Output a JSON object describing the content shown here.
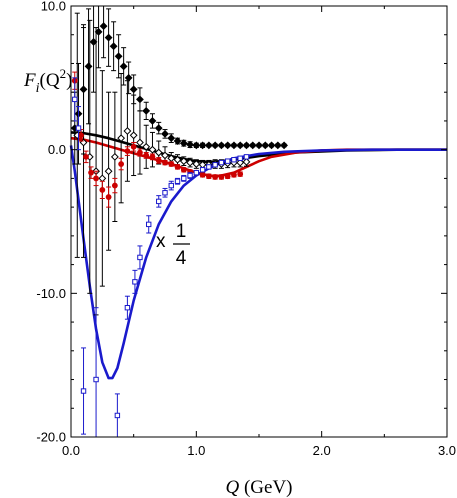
{
  "chart_data": {
    "type": "scatter",
    "title": "",
    "xlabel": {
      "var": "Q",
      "unit": " (GeV)"
    },
    "ylabel": {
      "base": "F",
      "sub": "i",
      "open": "(Q",
      "sup": "2",
      "close": ")"
    },
    "xlim": [
      0,
      3.0
    ],
    "ylim": [
      -20,
      10
    ],
    "x_ticks": [
      0.0,
      1.0,
      2.0,
      3.0
    ],
    "x_tick_labels": [
      "0.0",
      "1.0",
      "2.0",
      "3.0"
    ],
    "y_ticks": [
      -20,
      -10,
      0,
      10
    ],
    "y_tick_labels": [
      "-20.0",
      "-10.0",
      "0.0",
      "10.0"
    ],
    "grid": false,
    "annotation": {
      "prefix": "x",
      "numerator": "1",
      "denominator": "4"
    },
    "curves": [
      {
        "color": "#000000",
        "x": [
          0.0,
          0.1,
          0.2,
          0.3,
          0.4,
          0.5,
          0.6,
          0.7,
          0.8,
          0.9,
          1.0,
          1.1,
          1.2,
          1.3,
          1.5,
          1.8,
          2.2,
          2.6,
          3.0
        ],
        "y": [
          1.2,
          1.15,
          1.0,
          0.8,
          0.55,
          0.3,
          0.05,
          -0.2,
          -0.45,
          -0.65,
          -0.8,
          -0.85,
          -0.8,
          -0.7,
          -0.45,
          -0.2,
          -0.05,
          0.0,
          0.0
        ]
      },
      {
        "color": "#cc0000",
        "x": [
          0.0,
          0.1,
          0.2,
          0.3,
          0.4,
          0.5,
          0.6,
          0.7,
          0.8,
          0.9,
          1.0,
          1.1,
          1.15,
          1.2,
          1.3,
          1.4,
          1.5,
          1.6,
          1.8,
          2.0,
          2.2,
          2.6,
          3.0
        ],
        "y": [
          0.8,
          0.7,
          0.5,
          0.25,
          0.0,
          -0.25,
          -0.5,
          -0.75,
          -1.0,
          -1.3,
          -1.6,
          -1.8,
          -1.85,
          -1.8,
          -1.6,
          -1.2,
          -0.8,
          -0.5,
          -0.2,
          -0.05,
          0.0,
          0.0,
          0.0
        ]
      },
      {
        "color": "#1a1acc",
        "x": [
          0.0,
          0.03,
          0.06,
          0.1,
          0.15,
          0.2,
          0.25,
          0.3,
          0.33,
          0.37,
          0.42,
          0.5,
          0.6,
          0.7,
          0.8,
          0.9,
          1.0,
          1.1,
          1.2,
          1.3,
          1.5,
          1.7,
          2.0,
          2.4,
          3.0
        ],
        "y": [
          0.3,
          -1.5,
          -3.5,
          -6.2,
          -9.5,
          -12.5,
          -14.8,
          -15.9,
          -15.9,
          -15.2,
          -13.5,
          -10.5,
          -7.5,
          -5.2,
          -3.6,
          -2.5,
          -1.8,
          -1.3,
          -0.9,
          -0.6,
          -0.3,
          -0.15,
          -0.05,
          0.0,
          0.0
        ]
      }
    ],
    "series": [
      {
        "marker": "filled-diamond",
        "color": "#000000",
        "x": [
          0.03,
          0.06,
          0.1,
          0.14,
          0.18,
          0.22,
          0.26,
          0.3,
          0.34,
          0.38,
          0.42,
          0.46,
          0.5,
          0.55,
          0.6,
          0.65,
          0.7,
          0.75,
          0.8,
          0.85,
          0.9,
          0.95,
          1.0,
          1.05,
          1.1,
          1.15,
          1.2,
          1.25,
          1.3,
          1.35,
          1.4,
          1.45,
          1.5,
          1.55,
          1.6,
          1.65,
          1.7
        ],
        "y": [
          1.5,
          2.5,
          4.2,
          5.8,
          7.5,
          8.2,
          8.6,
          7.8,
          7.2,
          6.5,
          5.8,
          5.0,
          4.2,
          3.5,
          2.7,
          2.0,
          1.5,
          1.1,
          0.8,
          0.6,
          0.45,
          0.35,
          0.3,
          0.3,
          0.3,
          0.3,
          0.3,
          0.3,
          0.3,
          0.3,
          0.3,
          0.3,
          0.3,
          0.3,
          0.3,
          0.3,
          0.3
        ],
        "err": [
          2.5,
          3.5,
          4.5,
          4.0,
          3.5,
          2.5,
          2.2,
          2.0,
          1.7,
          1.5,
          1.3,
          1.1,
          1.0,
          0.8,
          0.6,
          0.5,
          0.4,
          0.3,
          0.3,
          0.2,
          0.2,
          0.2,
          0.15,
          0.15,
          0.1,
          0.1,
          0.1,
          0.1,
          0.1,
          0.1,
          0.1,
          0.1,
          0.1,
          0.1,
          0.1,
          0.1,
          0.1
        ]
      },
      {
        "marker": "open-diamond",
        "color": "#000000",
        "x": [
          0.05,
          0.1,
          0.15,
          0.2,
          0.25,
          0.3,
          0.35,
          0.4,
          0.45,
          0.5,
          0.55,
          0.6,
          0.65,
          0.7,
          0.75,
          0.8,
          0.85,
          0.9,
          0.95,
          1.0,
          1.05,
          1.1,
          1.15,
          1.2,
          1.25,
          1.3,
          1.35,
          1.4
        ],
        "y": [
          1.0,
          0.5,
          -0.5,
          -1.5,
          -2.0,
          -1.5,
          -0.5,
          0.8,
          1.3,
          1.0,
          0.5,
          0.2,
          0.0,
          -0.2,
          -0.4,
          -0.6,
          -0.7,
          -0.8,
          -0.9,
          -1.0,
          -1.05,
          -1.05,
          -1.0,
          -1.0,
          -0.95,
          -0.9,
          -0.9,
          -0.85
        ],
        "err": [
          8.5,
          8.0,
          9.5,
          10.0,
          7.5,
          5.5,
          4.5,
          4.5,
          3.5,
          2.8,
          2.2,
          1.5,
          1.2,
          0.8,
          0.6,
          0.4,
          0.35,
          0.3,
          0.3,
          0.3,
          0.3,
          0.3,
          0.3,
          0.3,
          0.3,
          0.3,
          0.3,
          0.3
        ]
      },
      {
        "marker": "filled-circle",
        "color": "#cc0000",
        "x": [
          0.03,
          0.08,
          0.12,
          0.16,
          0.2,
          0.25,
          0.3,
          0.35,
          0.4,
          0.45,
          0.5,
          0.55,
          0.6,
          0.65,
          0.7,
          0.75,
          0.8,
          0.85,
          0.9,
          0.95,
          1.0,
          1.05,
          1.1,
          1.15,
          1.2,
          1.25,
          1.3,
          1.35
        ],
        "y": [
          4.8,
          1.0,
          -0.5,
          -1.6,
          -2.0,
          -2.8,
          -3.3,
          -2.5,
          -1.0,
          -0.1,
          0.2,
          -0.2,
          -0.4,
          -0.5,
          -0.75,
          -0.9,
          -1.0,
          -1.2,
          -1.4,
          -1.55,
          -1.6,
          -1.75,
          -1.85,
          -1.9,
          -1.9,
          -1.85,
          -1.75,
          -1.7
        ],
        "err": [
          0.6,
          0.4,
          0.4,
          0.4,
          0.5,
          0.6,
          0.7,
          0.5,
          0.4,
          0.3,
          0.3,
          0.25,
          0.2,
          0.2,
          0.2,
          0.15,
          0.15,
          0.15,
          0.15,
          0.15,
          0.15,
          0.15,
          0.15,
          0.15,
          0.15,
          0.15,
          0.15,
          0.15
        ]
      },
      {
        "marker": "open-square",
        "color": "#1a1acc",
        "x": [
          0.03,
          0.06,
          0.1,
          0.2,
          0.37,
          0.45,
          0.51,
          0.55,
          0.62,
          0.7,
          0.75,
          0.8,
          0.85,
          0.9,
          0.95,
          1.0,
          1.05,
          1.1,
          1.15,
          1.2,
          1.25,
          1.3,
          1.35,
          1.4
        ],
        "y": [
          3.5,
          1.5,
          -16.8,
          -16.0,
          -18.5,
          -11.0,
          -9.2,
          -7.5,
          -5.2,
          -3.6,
          -3.0,
          -2.5,
          -2.2,
          -2.0,
          -1.8,
          -1.6,
          -1.4,
          -1.2,
          -1.05,
          -0.9,
          -0.8,
          -0.7,
          -0.6,
          -0.5
        ],
        "err": [
          1.5,
          1.5,
          3.0,
          5.0,
          1.5,
          0.8,
          0.8,
          0.8,
          0.6,
          0.4,
          0.3,
          0.3,
          0.2,
          0.2,
          0.2,
          0.15,
          0.15,
          0.1,
          0.1,
          0.1,
          0.1,
          0.1,
          0.1,
          0.1
        ]
      }
    ]
  }
}
